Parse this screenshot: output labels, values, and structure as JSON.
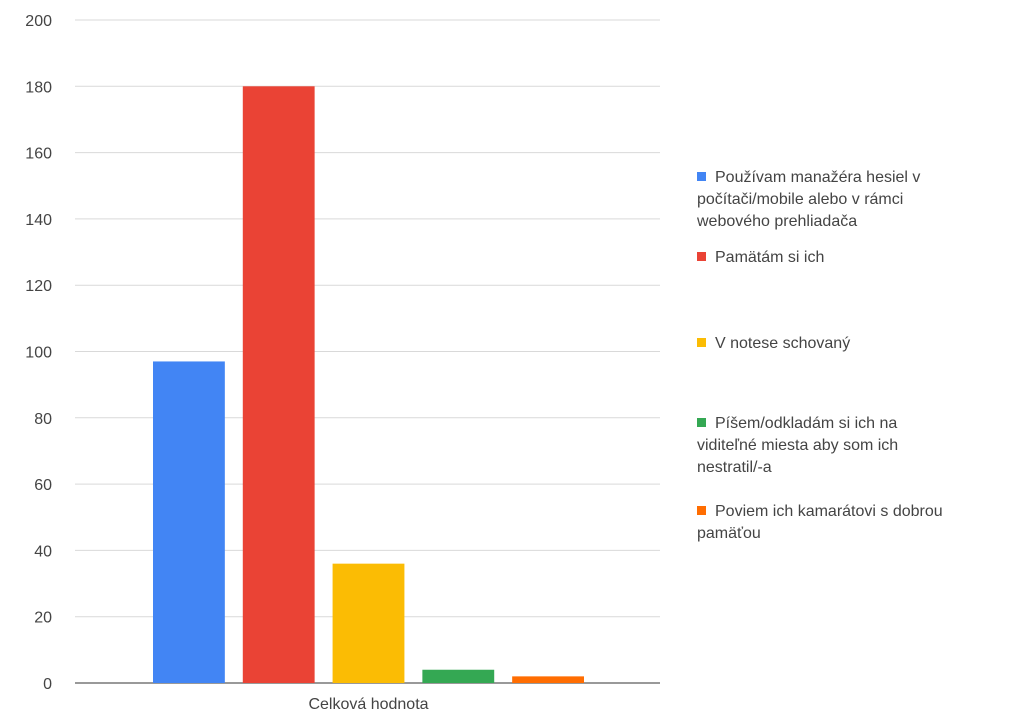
{
  "chart_data": {
    "type": "bar",
    "categories": [
      "Celková hodnota"
    ],
    "series": [
      {
        "name": "Používam manažéra hesiel v počítači/mobile alebo v rámci webového prehliadača",
        "values": [
          97
        ],
        "color": "#4285F4"
      },
      {
        "name": "Pamätám si ich",
        "values": [
          180
        ],
        "color": "#EA4335"
      },
      {
        "name": "V notese schovaný",
        "values": [
          36
        ],
        "color": "#FBBC04"
      },
      {
        "name": "Píšem/odkladám si ich na viditeľné miesta aby som ich nestratil/-a",
        "values": [
          4
        ],
        "color": "#34A853"
      },
      {
        "name": "Poviem ich kamarátovi s dobrou pamäťou",
        "values": [
          2
        ],
        "color": "#FF6D01"
      }
    ],
    "ylim": [
      0,
      200
    ],
    "yticks": [
      0,
      20,
      40,
      60,
      80,
      100,
      120,
      140,
      160,
      180,
      200
    ],
    "grid": true,
    "legend_position": "right",
    "legend_lines": [
      [
        "Používam manažéra hesiel v",
        "počítači/mobile alebo v rámci",
        "webového prehliadača"
      ],
      [
        "Pamätám si ich"
      ],
      [
        "V notese schovaný"
      ],
      [
        "Píšem/odkladám si ich na",
        "viditeľné miesta aby som ich",
        "nestratil/-a"
      ],
      [
        "Poviem ich kamarátovi s dobrou",
        "pamäťou"
      ]
    ]
  }
}
